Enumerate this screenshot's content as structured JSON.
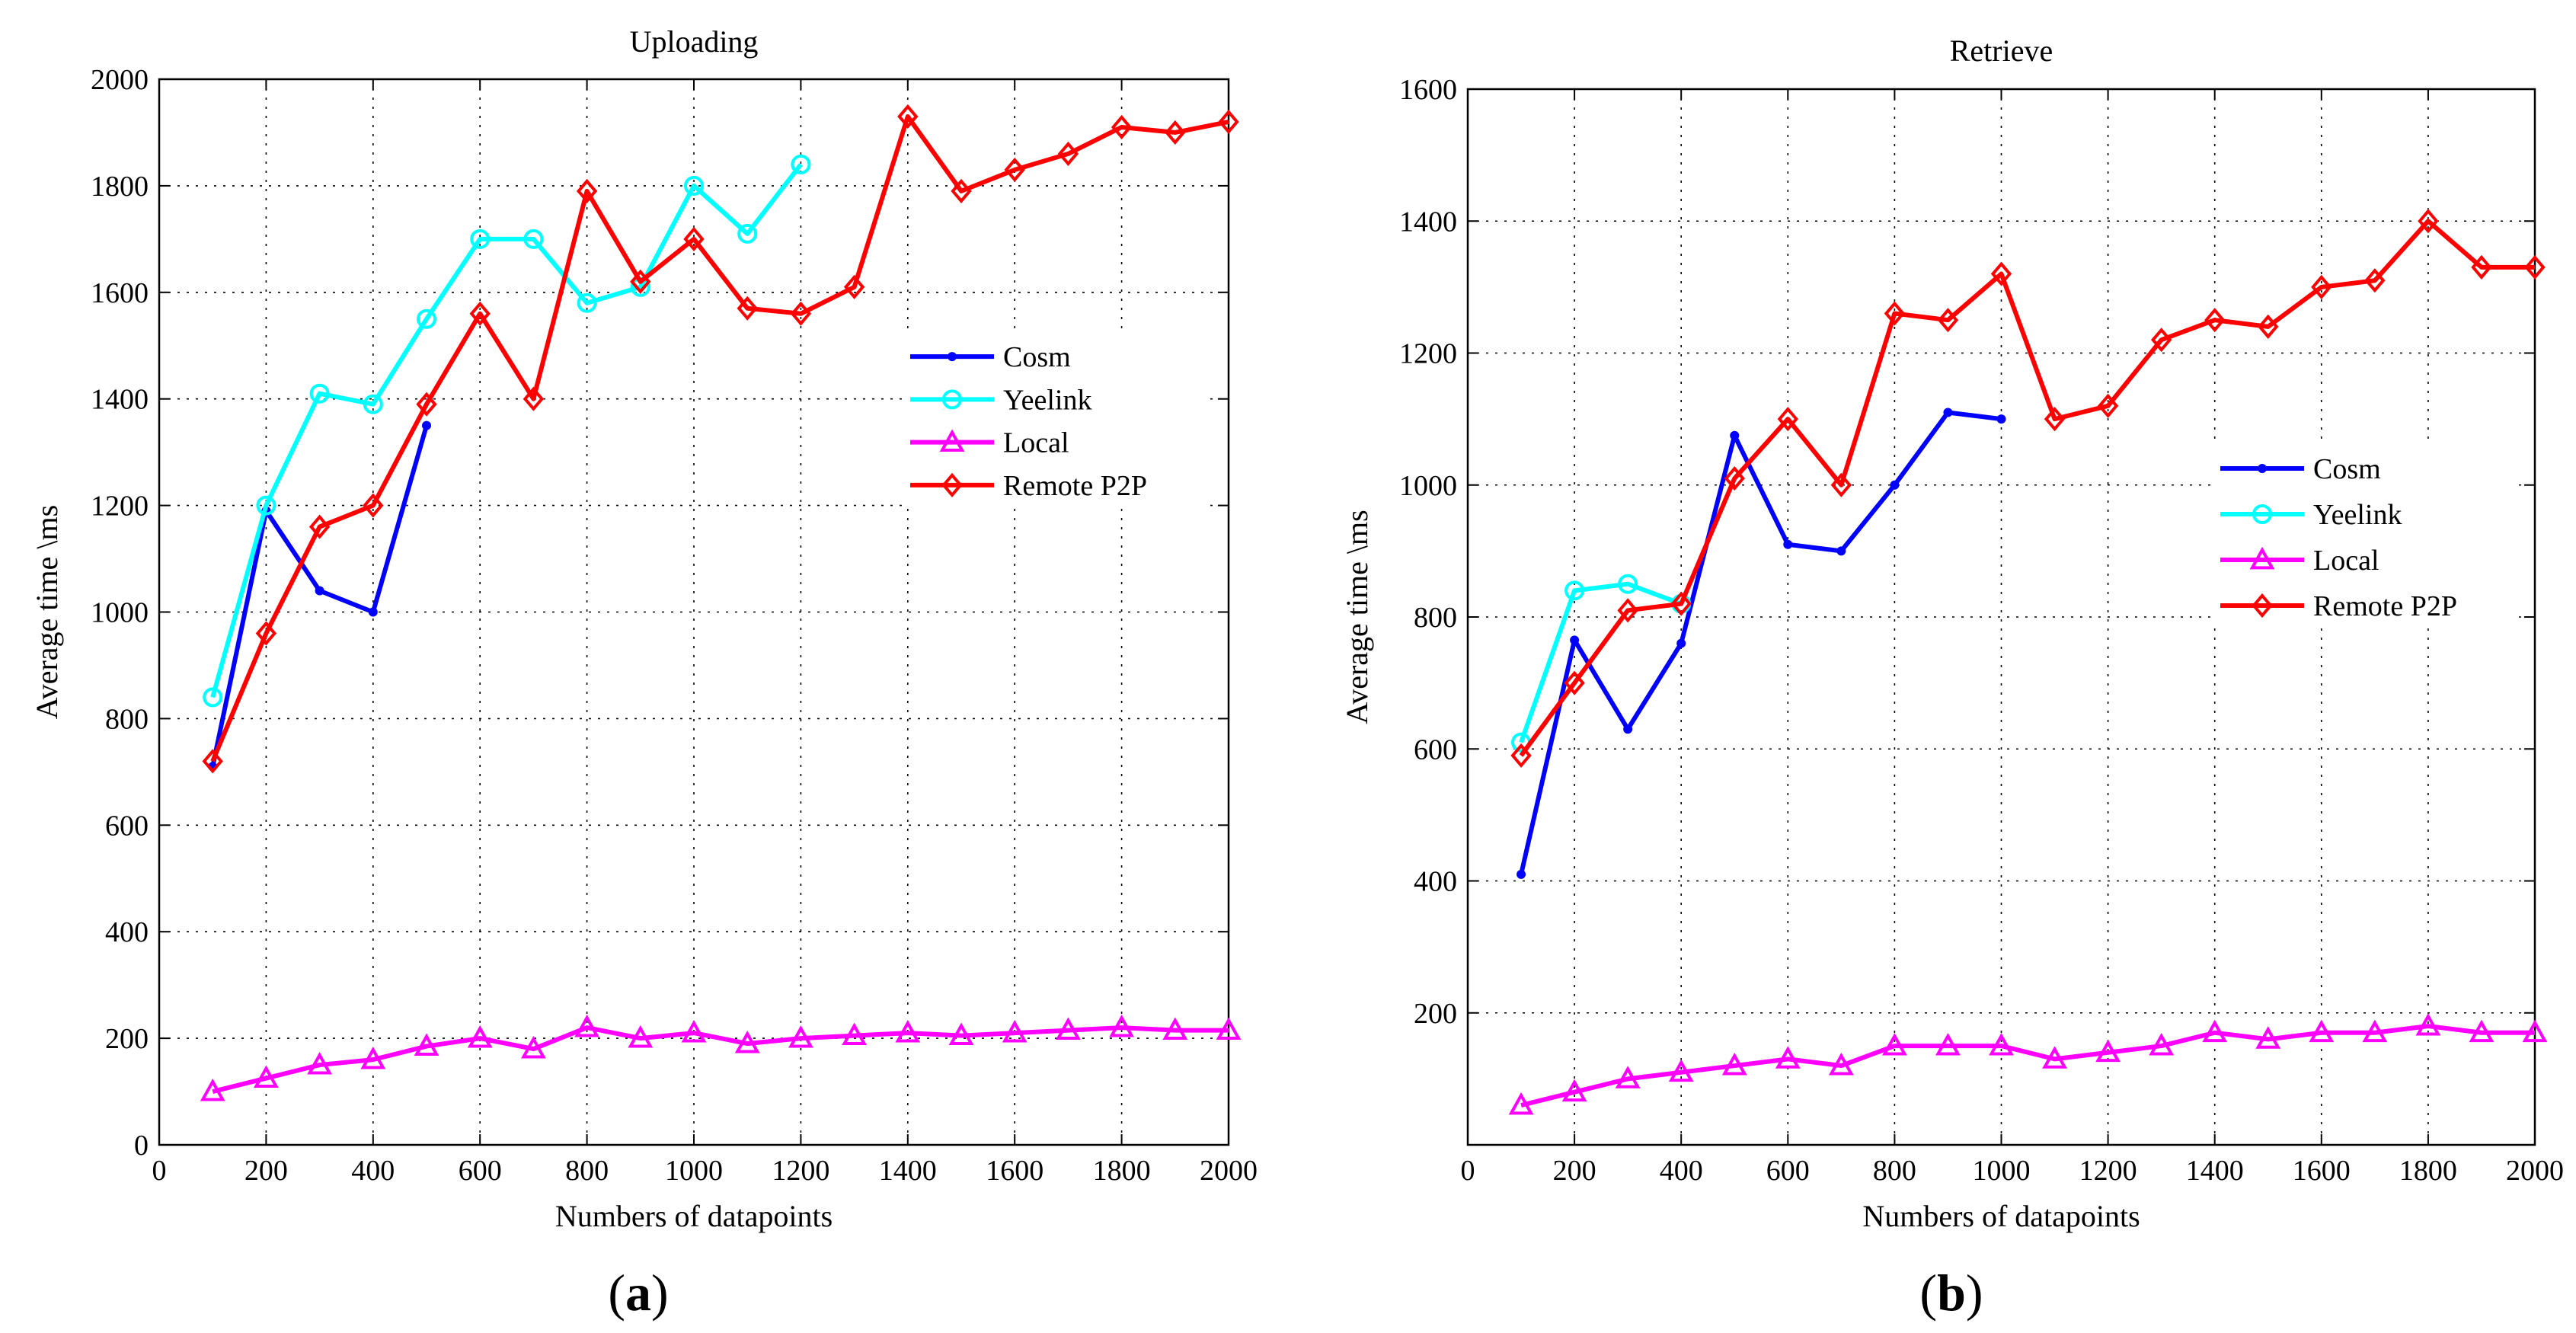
{
  "chart_data": [
    {
      "type": "line",
      "panel_label": "a",
      "title": "Uploading",
      "xlabel": "Numbers of datapoints",
      "ylabel": "Average time \\ms",
      "xlim": [
        0,
        2000
      ],
      "ylim": [
        0,
        2000
      ],
      "xticks": [
        0,
        200,
        400,
        600,
        800,
        1000,
        1200,
        1400,
        1600,
        1800,
        2000
      ],
      "yticks": [
        0,
        200,
        400,
        600,
        800,
        1000,
        1200,
        1400,
        1600,
        1800,
        2000
      ],
      "grid": true,
      "legend_position": "right-center",
      "series": [
        {
          "name": "Cosm",
          "color": "#0000ff",
          "marker": "dot",
          "x": [
            100,
            200,
            300,
            400,
            500
          ],
          "y": [
            710,
            1190,
            1040,
            1000,
            1350
          ]
        },
        {
          "name": "Yeelink",
          "color": "#00ffff",
          "marker": "circle",
          "x": [
            100,
            200,
            300,
            400,
            500,
            600,
            700,
            800,
            900,
            1000,
            1100,
            1200
          ],
          "y": [
            840,
            1200,
            1410,
            1390,
            1550,
            1700,
            1700,
            1580,
            1610,
            1800,
            1710,
            1840
          ]
        },
        {
          "name": "Local",
          "color": "#ff00ff",
          "marker": "triangle",
          "x": [
            100,
            200,
            300,
            400,
            500,
            600,
            700,
            800,
            900,
            1000,
            1100,
            1200,
            1300,
            1400,
            1500,
            1600,
            1700,
            1800,
            1900,
            2000
          ],
          "y": [
            100,
            125,
            150,
            160,
            185,
            200,
            180,
            220,
            200,
            210,
            190,
            200,
            205,
            210,
            205,
            210,
            215,
            220,
            215,
            215
          ]
        },
        {
          "name": "Remote P2P",
          "color": "#ff0000",
          "marker": "diamond",
          "x": [
            100,
            200,
            300,
            400,
            500,
            600,
            700,
            800,
            900,
            1000,
            1100,
            1200,
            1300,
            1400,
            1500,
            1600,
            1700,
            1800,
            1900,
            2000
          ],
          "y": [
            720,
            960,
            1160,
            1200,
            1390,
            1560,
            1400,
            1790,
            1620,
            1700,
            1570,
            1560,
            1610,
            1930,
            1790,
            1830,
            1860,
            1910,
            1900,
            1920
          ]
        }
      ]
    },
    {
      "type": "line",
      "panel_label": "b",
      "title": "Retrieve",
      "xlabel": "Numbers of datapoints",
      "ylabel": "Average time \\ms",
      "xlim": [
        0,
        2000
      ],
      "ylim": [
        0,
        1600
      ],
      "xticks": [
        0,
        200,
        400,
        600,
        800,
        1000,
        1200,
        1400,
        1600,
        1800,
        2000
      ],
      "yticks": [
        200,
        400,
        600,
        800,
        1000,
        1200,
        1400,
        1600
      ],
      "grid": true,
      "legend_position": "right-center",
      "series": [
        {
          "name": "Cosm",
          "color": "#0000ff",
          "marker": "dot",
          "x": [
            100,
            200,
            300,
            400,
            500,
            600,
            700,
            800,
            900,
            1000
          ],
          "y": [
            410,
            765,
            630,
            760,
            1075,
            910,
            900,
            1000,
            1110,
            1100
          ]
        },
        {
          "name": "Yeelink",
          "color": "#00ffff",
          "marker": "circle",
          "x": [
            100,
            200,
            300,
            400
          ],
          "y": [
            610,
            840,
            850,
            820
          ]
        },
        {
          "name": "Local",
          "color": "#ff00ff",
          "marker": "triangle",
          "x": [
            100,
            200,
            300,
            400,
            500,
            600,
            700,
            800,
            900,
            1000,
            1100,
            1200,
            1300,
            1400,
            1500,
            1600,
            1700,
            1800,
            1900,
            2000
          ],
          "y": [
            60,
            80,
            100,
            110,
            120,
            130,
            120,
            150,
            150,
            150,
            130,
            140,
            150,
            170,
            160,
            170,
            170,
            180,
            170,
            170
          ]
        },
        {
          "name": "Remote P2P",
          "color": "#ff0000",
          "marker": "diamond",
          "x": [
            100,
            200,
            300,
            400,
            500,
            600,
            700,
            800,
            900,
            1000,
            1100,
            1200,
            1300,
            1400,
            1500,
            1600,
            1700,
            1800,
            1900,
            2000
          ],
          "y": [
            590,
            700,
            810,
            820,
            1010,
            1100,
            1000,
            1260,
            1250,
            1320,
            1100,
            1120,
            1220,
            1250,
            1240,
            1300,
            1310,
            1400,
            1330,
            1330
          ]
        }
      ]
    }
  ]
}
